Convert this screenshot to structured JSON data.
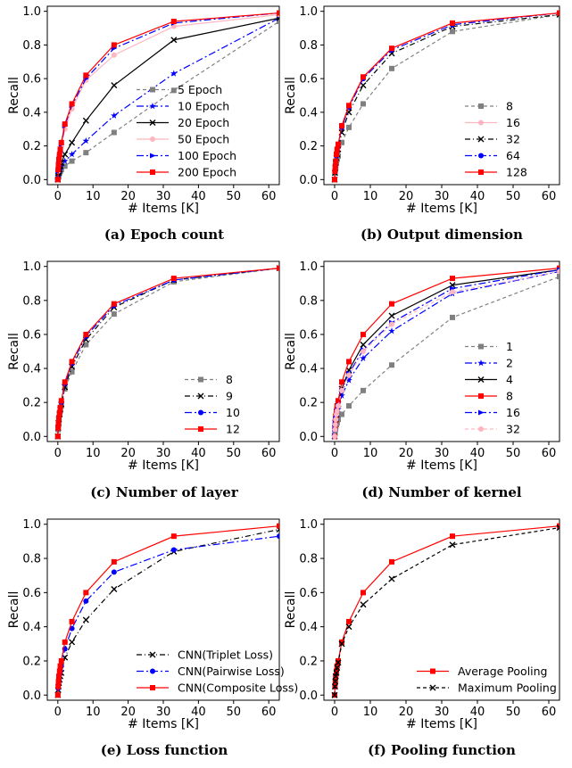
{
  "chart_data": [
    {
      "type": "line",
      "caption": "(a) Epoch count",
      "xlabel": "# Items [K]",
      "ylabel": "Recall",
      "xlim": [
        -3,
        63
      ],
      "ylim": [
        -0.03,
        1.03
      ],
      "xticks": [
        "0",
        "10",
        "20",
        "30",
        "40",
        "50",
        "60"
      ],
      "yticks": [
        "0.0",
        "0.2",
        "0.4",
        "0.6",
        "0.8",
        "1.0"
      ],
      "legend_position": "lower-right",
      "series": [
        {
          "name": "5   Epoch",
          "color": "#808080",
          "dash": "4,3",
          "marker": "square",
          "x": [
            0,
            0.1,
            0.2,
            0.3,
            0.5,
            0.7,
            1,
            2,
            4,
            8,
            16,
            33,
            63
          ],
          "y": [
            0.0,
            0.01,
            0.02,
            0.03,
            0.04,
            0.05,
            0.06,
            0.08,
            0.11,
            0.16,
            0.28,
            0.53,
            0.94
          ]
        },
        {
          "name": "10   Epoch",
          "color": "#0000ff",
          "dash": "8,3,2,3",
          "marker": "star",
          "x": [
            0,
            0.1,
            0.2,
            0.3,
            0.5,
            0.7,
            1,
            2,
            4,
            8,
            16,
            33,
            63
          ],
          "y": [
            0.0,
            0.02,
            0.03,
            0.04,
            0.05,
            0.06,
            0.08,
            0.11,
            0.15,
            0.23,
            0.38,
            0.63,
            0.96
          ]
        },
        {
          "name": "20   Epoch",
          "color": "#000000",
          "dash": "",
          "marker": "x",
          "x": [
            0,
            0.1,
            0.2,
            0.3,
            0.5,
            0.7,
            1,
            2,
            4,
            8,
            16,
            33,
            63
          ],
          "y": [
            0.0,
            0.02,
            0.04,
            0.05,
            0.06,
            0.08,
            0.1,
            0.15,
            0.22,
            0.35,
            0.56,
            0.83,
            0.96
          ]
        },
        {
          "name": "50   Epoch",
          "color": "#ffb6c1",
          "dash": "",
          "marker": "circle",
          "x": [
            0,
            0.1,
            0.2,
            0.3,
            0.5,
            0.7,
            1,
            2,
            4,
            8,
            16,
            33,
            63
          ],
          "y": [
            0.0,
            0.05,
            0.08,
            0.1,
            0.13,
            0.16,
            0.2,
            0.3,
            0.42,
            0.59,
            0.74,
            0.91,
            0.98
          ]
        },
        {
          "name": "100   Epoch",
          "color": "#0000ff",
          "dash": "8,3,2,3",
          "marker": "triangle",
          "x": [
            0,
            0.1,
            0.2,
            0.3,
            0.5,
            0.7,
            1,
            2,
            4,
            8,
            16,
            33,
            63
          ],
          "y": [
            0.0,
            0.05,
            0.08,
            0.11,
            0.14,
            0.17,
            0.21,
            0.32,
            0.44,
            0.6,
            0.78,
            0.93,
            0.99
          ]
        },
        {
          "name": "200   Epoch",
          "color": "#ff0000",
          "dash": "",
          "marker": "square",
          "x": [
            0,
            0.1,
            0.2,
            0.3,
            0.5,
            0.7,
            1,
            2,
            4,
            8,
            16,
            33,
            63
          ],
          "y": [
            0.0,
            0.06,
            0.09,
            0.12,
            0.15,
            0.18,
            0.22,
            0.33,
            0.45,
            0.62,
            0.8,
            0.94,
            0.99
          ]
        }
      ]
    },
    {
      "type": "line",
      "caption": "(b) Output dimension",
      "xlabel": "# Items [K]",
      "ylabel": "Recall",
      "xlim": [
        -3,
        63
      ],
      "ylim": [
        -0.03,
        1.03
      ],
      "xticks": [
        "0",
        "10",
        "20",
        "30",
        "40",
        "50",
        "60"
      ],
      "yticks": [
        "0.0",
        "0.2",
        "0.4",
        "0.6",
        "0.8",
        "1.0"
      ],
      "legend_position": "lower-right",
      "series": [
        {
          "name": "8",
          "color": "#808080",
          "dash": "4,3",
          "marker": "square",
          "x": [
            0,
            0.1,
            0.2,
            0.3,
            0.5,
            0.7,
            1,
            2,
            4,
            8,
            16,
            33,
            63
          ],
          "y": [
            0.0,
            0.04,
            0.06,
            0.08,
            0.1,
            0.12,
            0.14,
            0.22,
            0.31,
            0.45,
            0.66,
            0.88,
            0.98
          ]
        },
        {
          "name": "16",
          "color": "#ffb6c1",
          "dash": "",
          "marker": "circle",
          "x": [
            0,
            0.1,
            0.2,
            0.3,
            0.5,
            0.7,
            1,
            2,
            4,
            8,
            16,
            33,
            63
          ],
          "y": [
            0.0,
            0.05,
            0.08,
            0.11,
            0.14,
            0.17,
            0.2,
            0.3,
            0.43,
            0.6,
            0.78,
            0.93,
            0.99
          ]
        },
        {
          "name": "32",
          "color": "#000000",
          "dash": "6,3,1,3",
          "marker": "x",
          "x": [
            0,
            0.1,
            0.2,
            0.3,
            0.5,
            0.7,
            1,
            2,
            4,
            8,
            16,
            33,
            63
          ],
          "y": [
            0.0,
            0.04,
            0.07,
            0.1,
            0.13,
            0.15,
            0.18,
            0.28,
            0.4,
            0.56,
            0.75,
            0.91,
            0.98
          ]
        },
        {
          "name": "64",
          "color": "#0000ff",
          "dash": "8,3,2,3",
          "marker": "circle",
          "x": [
            0,
            0.1,
            0.2,
            0.3,
            0.5,
            0.7,
            1,
            2,
            4,
            8,
            16,
            33,
            63
          ],
          "y": [
            0.0,
            0.05,
            0.08,
            0.11,
            0.14,
            0.17,
            0.2,
            0.31,
            0.43,
            0.6,
            0.77,
            0.92,
            0.99
          ]
        },
        {
          "name": "128",
          "color": "#ff0000",
          "dash": "",
          "marker": "square",
          "x": [
            0,
            0.1,
            0.2,
            0.3,
            0.5,
            0.7,
            1,
            2,
            4,
            8,
            16,
            33,
            63
          ],
          "y": [
            0.0,
            0.05,
            0.08,
            0.11,
            0.15,
            0.18,
            0.21,
            0.32,
            0.44,
            0.61,
            0.78,
            0.93,
            0.99
          ]
        }
      ]
    },
    {
      "type": "line",
      "caption": "(c) Number of layer",
      "xlabel": "# Items [K]",
      "ylabel": "Recall",
      "xlim": [
        -3,
        63
      ],
      "ylim": [
        -0.03,
        1.03
      ],
      "xticks": [
        "0",
        "10",
        "20",
        "30",
        "40",
        "50",
        "60"
      ],
      "yticks": [
        "0.0",
        "0.2",
        "0.4",
        "0.6",
        "0.8",
        "1.0"
      ],
      "legend_position": "lower-right",
      "series": [
        {
          "name": "8",
          "color": "#808080",
          "dash": "4,3",
          "marker": "square",
          "x": [
            0,
            0.1,
            0.2,
            0.3,
            0.5,
            0.7,
            1,
            2,
            4,
            8,
            16,
            33,
            63
          ],
          "y": [
            0.0,
            0.04,
            0.07,
            0.1,
            0.13,
            0.15,
            0.18,
            0.28,
            0.38,
            0.54,
            0.72,
            0.91,
            0.99
          ]
        },
        {
          "name": "9",
          "color": "#000000",
          "dash": "6,3,1,3",
          "marker": "x",
          "x": [
            0,
            0.1,
            0.2,
            0.3,
            0.5,
            0.7,
            1,
            2,
            4,
            8,
            16,
            33,
            63
          ],
          "y": [
            0.0,
            0.05,
            0.08,
            0.1,
            0.13,
            0.16,
            0.19,
            0.29,
            0.41,
            0.57,
            0.76,
            0.92,
            0.99
          ]
        },
        {
          "name": "10",
          "color": "#0000ff",
          "dash": "8,3,2,3",
          "marker": "circle",
          "x": [
            0,
            0.1,
            0.2,
            0.3,
            0.5,
            0.7,
            1,
            2,
            4,
            8,
            16,
            33,
            63
          ],
          "y": [
            0.0,
            0.05,
            0.08,
            0.11,
            0.14,
            0.17,
            0.2,
            0.31,
            0.43,
            0.59,
            0.77,
            0.92,
            0.99
          ]
        },
        {
          "name": "12",
          "color": "#ff0000",
          "dash": "",
          "marker": "square",
          "x": [
            0,
            0.1,
            0.2,
            0.3,
            0.5,
            0.7,
            1,
            2,
            4,
            8,
            16,
            33,
            63
          ],
          "y": [
            0.0,
            0.05,
            0.08,
            0.11,
            0.14,
            0.17,
            0.21,
            0.32,
            0.44,
            0.6,
            0.78,
            0.93,
            0.99
          ]
        }
      ]
    },
    {
      "type": "line",
      "caption": "(d) Number of kernel",
      "xlabel": "# Items [K]",
      "ylabel": "Recall",
      "xlim": [
        -3,
        63
      ],
      "ylim": [
        -0.03,
        1.03
      ],
      "xticks": [
        "0",
        "10",
        "20",
        "30",
        "40",
        "50",
        "60"
      ],
      "yticks": [
        "0.0",
        "0.2",
        "0.4",
        "0.6",
        "0.8",
        "1.0"
      ],
      "legend_position": "lower-right",
      "series": [
        {
          "name": "1",
          "color": "#808080",
          "dash": "4,3",
          "marker": "square",
          "x": [
            0,
            0.1,
            0.2,
            0.3,
            0.5,
            0.7,
            1,
            2,
            4,
            8,
            16,
            33,
            63
          ],
          "y": [
            0.0,
            0.02,
            0.04,
            0.05,
            0.07,
            0.08,
            0.1,
            0.13,
            0.18,
            0.27,
            0.42,
            0.7,
            0.94
          ]
        },
        {
          "name": "2",
          "color": "#0000ff",
          "dash": "8,3,2,3",
          "marker": "star",
          "x": [
            0,
            0.1,
            0.2,
            0.3,
            0.5,
            0.7,
            1,
            2,
            4,
            8,
            16,
            33,
            63
          ],
          "y": [
            0.0,
            0.04,
            0.07,
            0.09,
            0.11,
            0.14,
            0.16,
            0.24,
            0.33,
            0.46,
            0.62,
            0.84,
            0.97
          ]
        },
        {
          "name": "4",
          "color": "#000000",
          "dash": "",
          "marker": "x",
          "x": [
            0,
            0.1,
            0.2,
            0.3,
            0.5,
            0.7,
            1,
            2,
            4,
            8,
            16,
            33,
            63
          ],
          "y": [
            0.0,
            0.05,
            0.08,
            0.1,
            0.13,
            0.16,
            0.19,
            0.28,
            0.39,
            0.54,
            0.71,
            0.89,
            0.98
          ]
        },
        {
          "name": "8",
          "color": "#ff0000",
          "dash": "",
          "marker": "square",
          "x": [
            0,
            0.1,
            0.2,
            0.3,
            0.5,
            0.7,
            1,
            2,
            4,
            8,
            16,
            33,
            63
          ],
          "y": [
            0.0,
            0.05,
            0.09,
            0.12,
            0.15,
            0.18,
            0.21,
            0.32,
            0.44,
            0.6,
            0.78,
            0.93,
            0.99
          ]
        },
        {
          "name": "16",
          "color": "#0000ff",
          "dash": "8,3,2,3",
          "marker": "triangle",
          "x": [
            0,
            0.1,
            0.2,
            0.3,
            0.5,
            0.7,
            1,
            2,
            4,
            8,
            16,
            33,
            63
          ],
          "y": [
            0.0,
            0.04,
            0.07,
            0.1,
            0.12,
            0.15,
            0.18,
            0.27,
            0.37,
            0.51,
            0.67,
            0.87,
            0.98
          ]
        },
        {
          "name": "32",
          "color": "#ffb6c1",
          "dash": "4,3",
          "marker": "circle",
          "x": [
            0,
            0.1,
            0.2,
            0.3,
            0.5,
            0.7,
            1,
            2,
            4,
            8,
            16,
            33,
            63
          ],
          "y": [
            0.0,
            0.04,
            0.07,
            0.1,
            0.13,
            0.15,
            0.18,
            0.27,
            0.36,
            0.5,
            0.66,
            0.85,
            0.97
          ]
        }
      ]
    },
    {
      "type": "line",
      "caption": "(e) Loss function",
      "xlabel": "# Items [K]",
      "ylabel": "Recall",
      "xlim": [
        -3,
        63
      ],
      "ylim": [
        -0.03,
        1.03
      ],
      "xticks": [
        "0",
        "10",
        "20",
        "30",
        "40",
        "50",
        "60"
      ],
      "yticks": [
        "0.0",
        "0.2",
        "0.4",
        "0.6",
        "0.8",
        "1.0"
      ],
      "legend_position": "lower-right",
      "series": [
        {
          "name": "CNN(Triplet Loss)",
          "color": "#000000",
          "dash": "6,3,1,3",
          "marker": "x",
          "x": [
            0,
            0.1,
            0.2,
            0.3,
            0.5,
            0.7,
            1,
            2,
            4,
            8,
            16,
            33,
            63
          ],
          "y": [
            0.0,
            0.03,
            0.05,
            0.07,
            0.09,
            0.11,
            0.13,
            0.22,
            0.31,
            0.44,
            0.62,
            0.84,
            0.97
          ]
        },
        {
          "name": "CNN(Pairwise Loss)",
          "color": "#0000ff",
          "dash": "8,3,2,3",
          "marker": "circle",
          "x": [
            0,
            0.1,
            0.2,
            0.3,
            0.5,
            0.7,
            1,
            2,
            4,
            8,
            16,
            33,
            63
          ],
          "y": [
            0.0,
            0.04,
            0.07,
            0.09,
            0.12,
            0.14,
            0.17,
            0.27,
            0.39,
            0.55,
            0.72,
            0.85,
            0.93
          ]
        },
        {
          "name": "CNN(Composite Loss)",
          "color": "#ff0000",
          "dash": "",
          "marker": "square",
          "x": [
            0,
            0.1,
            0.2,
            0.3,
            0.5,
            0.7,
            1,
            2,
            4,
            8,
            16,
            33,
            63
          ],
          "y": [
            0.0,
            0.05,
            0.08,
            0.11,
            0.14,
            0.17,
            0.2,
            0.31,
            0.43,
            0.6,
            0.78,
            0.93,
            0.99
          ]
        }
      ]
    },
    {
      "type": "line",
      "caption": "(f) Pooling function",
      "xlabel": "# Items [K]",
      "ylabel": "Recall",
      "xlim": [
        -3,
        63
      ],
      "ylim": [
        -0.03,
        1.03
      ],
      "xticks": [
        "0",
        "10",
        "20",
        "30",
        "40",
        "50",
        "60"
      ],
      "yticks": [
        "0.0",
        "0.2",
        "0.4",
        "0.6",
        "0.8",
        "1.0"
      ],
      "legend_position": "lower-right",
      "series": [
        {
          "name": "Average Pooling",
          "color": "#ff0000",
          "dash": "",
          "marker": "square",
          "x": [
            0,
            0.1,
            0.2,
            0.3,
            0.5,
            0.7,
            1,
            2,
            4,
            8,
            16,
            33,
            63
          ],
          "y": [
            0.0,
            0.05,
            0.08,
            0.11,
            0.14,
            0.17,
            0.2,
            0.31,
            0.43,
            0.6,
            0.78,
            0.93,
            0.99
          ]
        },
        {
          "name": "Maximum Pooling",
          "color": "#000000",
          "dash": "4,3",
          "marker": "x",
          "x": [
            0,
            0.1,
            0.2,
            0.3,
            0.5,
            0.7,
            1,
            2,
            4,
            8,
            16,
            33,
            63
          ],
          "y": [
            0.0,
            0.05,
            0.08,
            0.11,
            0.13,
            0.16,
            0.19,
            0.3,
            0.4,
            0.53,
            0.68,
            0.88,
            0.98
          ]
        }
      ]
    }
  ]
}
